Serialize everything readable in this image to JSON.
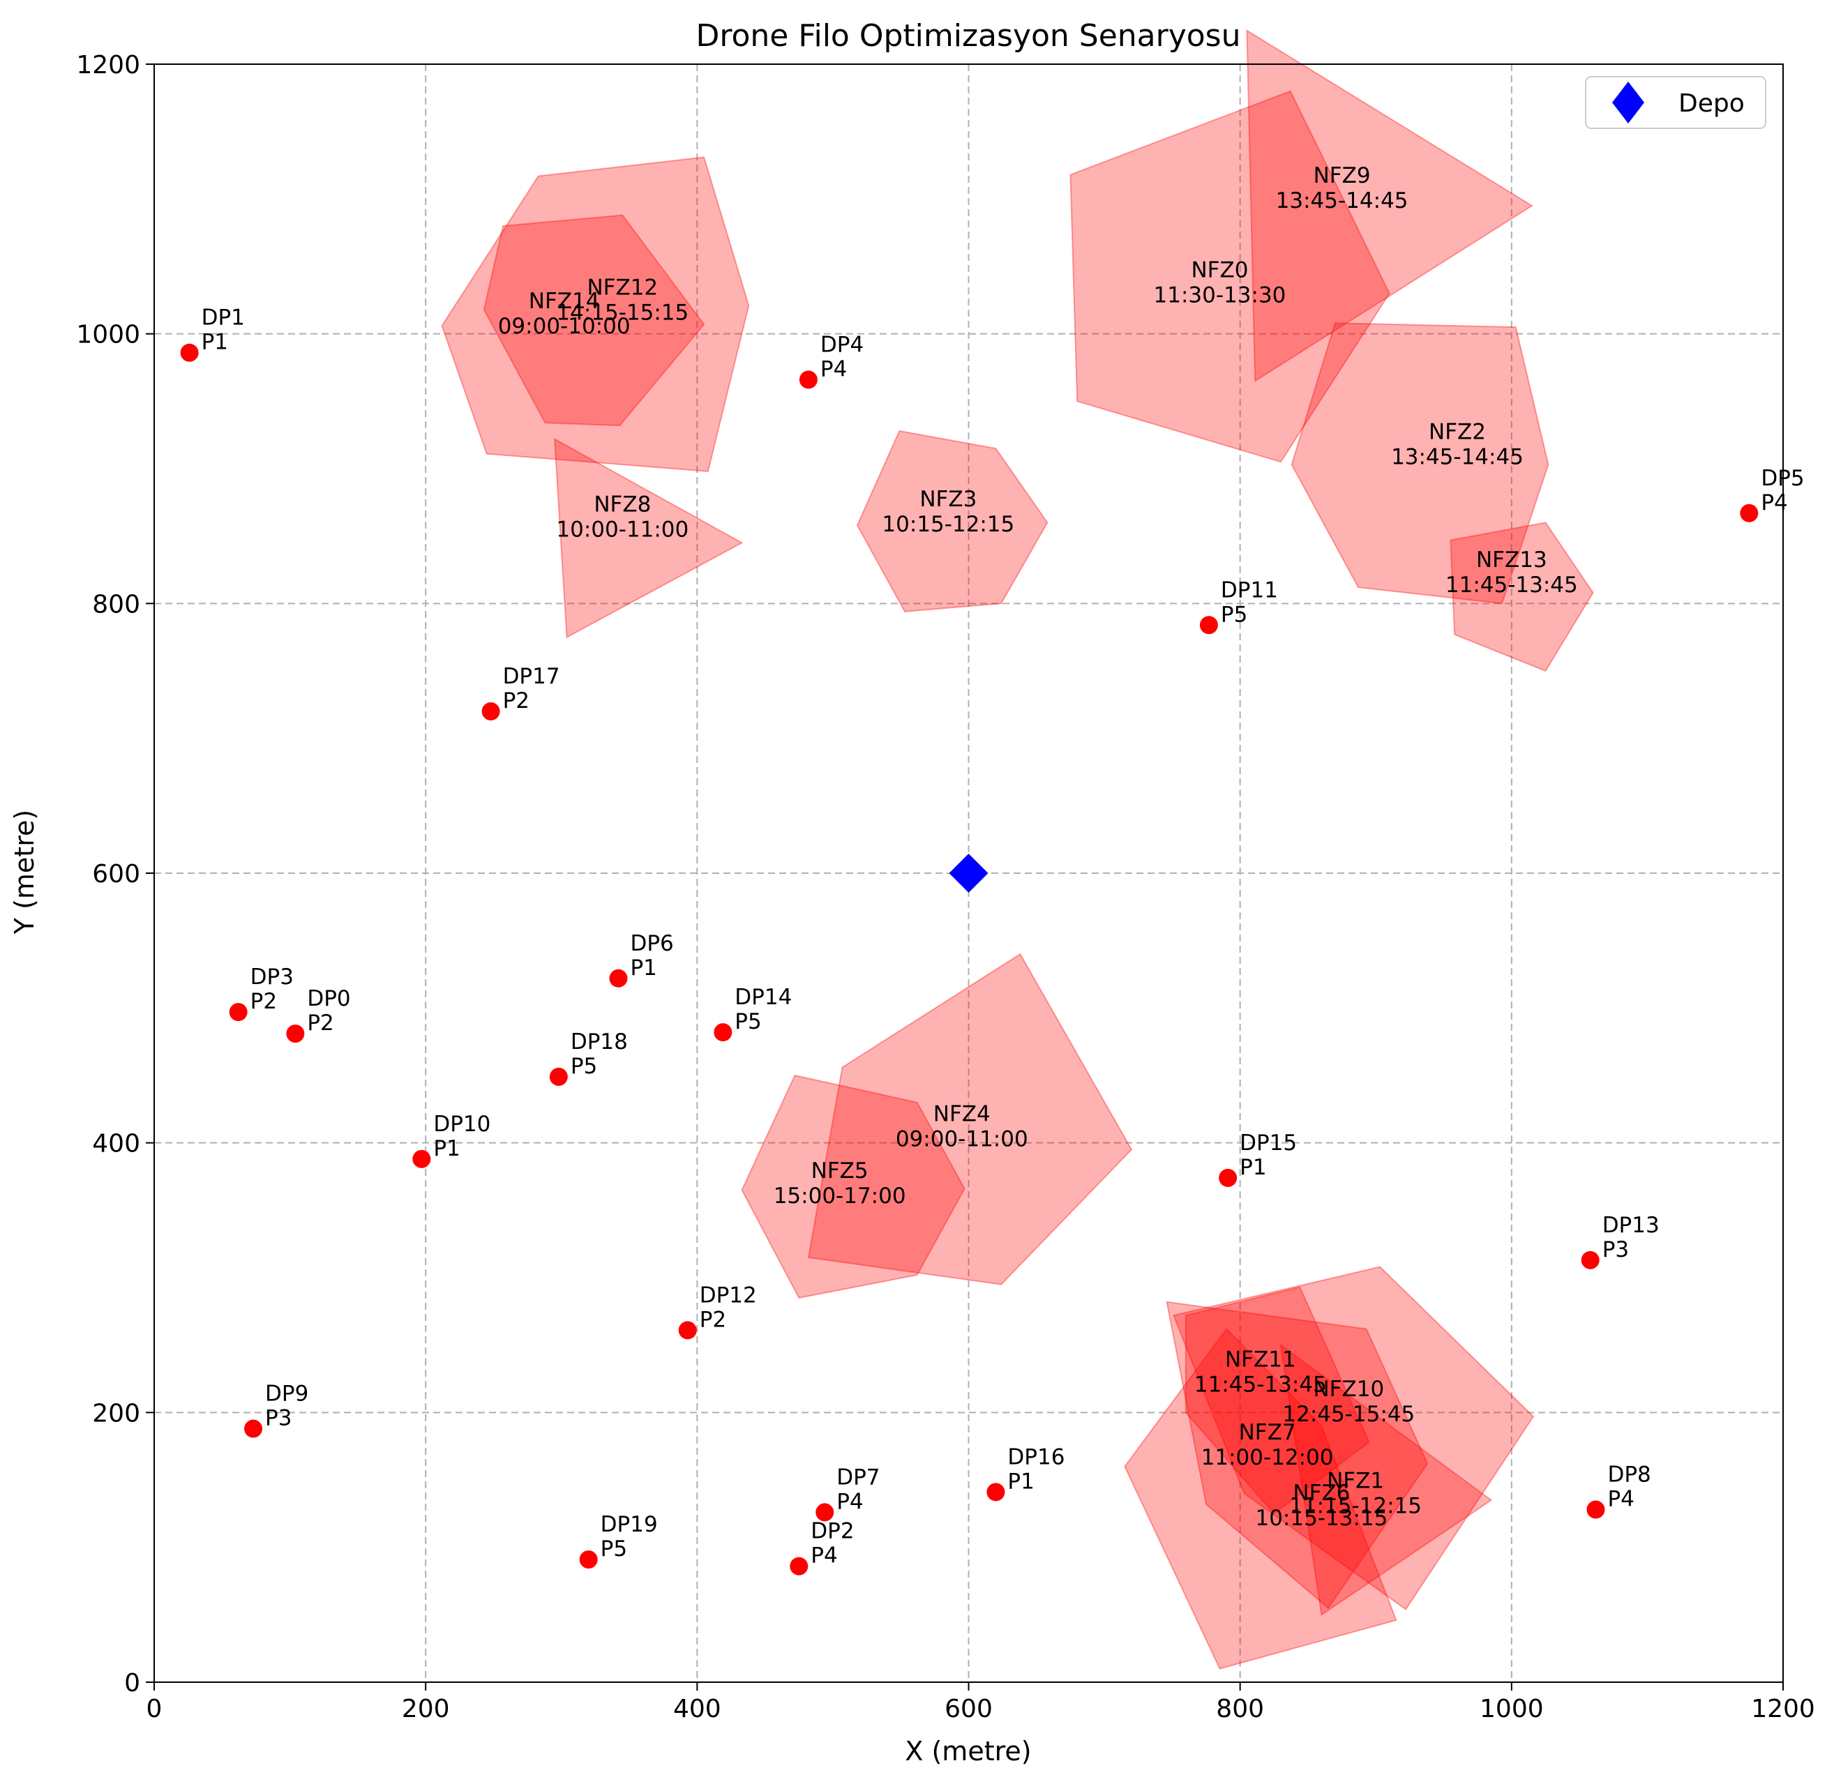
{
  "chart_data": {
    "type": "scatter",
    "title": "Drone Filo Optimizasyon Senaryosu",
    "xlabel": "X (metre)",
    "ylabel": "Y (metre)",
    "xlim": [
      0,
      1200
    ],
    "ylim": [
      0,
      1200
    ],
    "xticks": [
      "0",
      "200",
      "400",
      "600",
      "800",
      "1000",
      "1200"
    ],
    "yticks": [
      "0",
      "200",
      "400",
      "600",
      "800",
      "1000",
      "1200"
    ],
    "grid": true,
    "legend": {
      "position": "top-right",
      "entries": [
        {
          "label": "Depo",
          "marker": "diamond",
          "color": "#0000ff"
        }
      ]
    },
    "colors": {
      "depot": "#0000ff",
      "delivery_point": "#ff0000",
      "nfz_fill": "#ff0000",
      "grid": "#b0b0b0"
    },
    "depot": {
      "name": "Depo",
      "x": 600,
      "y": 600
    },
    "delivery_points": [
      {
        "id": "DP0",
        "priority": "P2",
        "x": 104,
        "y": 481
      },
      {
        "id": "DP1",
        "priority": "P1",
        "x": 26,
        "y": 986
      },
      {
        "id": "DP2",
        "priority": "P4",
        "x": 475,
        "y": 86
      },
      {
        "id": "DP3",
        "priority": "P2",
        "x": 62,
        "y": 497
      },
      {
        "id": "DP4",
        "priority": "P4",
        "x": 482,
        "y": 966
      },
      {
        "id": "DP5",
        "priority": "P4",
        "x": 1175,
        "y": 867
      },
      {
        "id": "DP6",
        "priority": "P1",
        "x": 342,
        "y": 522
      },
      {
        "id": "DP7",
        "priority": "P4",
        "x": 494,
        "y": 126
      },
      {
        "id": "DP8",
        "priority": "P4",
        "x": 1062,
        "y": 128
      },
      {
        "id": "DP9",
        "priority": "P3",
        "x": 73,
        "y": 188
      },
      {
        "id": "DP10",
        "priority": "P1",
        "x": 197,
        "y": 388
      },
      {
        "id": "DP11",
        "priority": "P5",
        "x": 777,
        "y": 784
      },
      {
        "id": "DP12",
        "priority": "P2",
        "x": 393,
        "y": 261
      },
      {
        "id": "DP13",
        "priority": "P3",
        "x": 1058,
        "y": 313
      },
      {
        "id": "DP14",
        "priority": "P5",
        "x": 419,
        "y": 482
      },
      {
        "id": "DP15",
        "priority": "P1",
        "x": 791,
        "y": 374
      },
      {
        "id": "DP16",
        "priority": "P1",
        "x": 620,
        "y": 141
      },
      {
        "id": "DP17",
        "priority": "P2",
        "x": 248,
        "y": 720
      },
      {
        "id": "DP18",
        "priority": "P5",
        "x": 298,
        "y": 449
      },
      {
        "id": "DP19",
        "priority": "P5",
        "x": 320,
        "y": 91
      }
    ],
    "no_fly_zones": [
      {
        "name": "NFZ0",
        "time": "11:30-13:30",
        "label_x": 785,
        "label_y": 1040,
        "polygon": [
          [
            675,
            1118
          ],
          [
            837,
            1180
          ],
          [
            910,
            1030
          ],
          [
            830,
            905
          ],
          [
            680,
            950
          ]
        ]
      },
      {
        "name": "NFZ1",
        "time": "11:15-12:15",
        "label_x": 885,
        "label_y": 142,
        "polygon": [
          [
            830,
            250
          ],
          [
            985,
            135
          ],
          [
            860,
            50
          ]
        ]
      },
      {
        "name": "NFZ2",
        "time": "13:45-14:45",
        "label_x": 960,
        "label_y": 920,
        "polygon": [
          [
            870,
            1008
          ],
          [
            1003,
            1005
          ],
          [
            1027,
            903
          ],
          [
            993,
            800
          ],
          [
            887,
            812
          ],
          [
            838,
            903
          ]
        ]
      },
      {
        "name": "NFZ3",
        "time": "10:15-12:15",
        "label_x": 585,
        "label_y": 870,
        "polygon": [
          [
            549,
            928
          ],
          [
            620,
            915
          ],
          [
            658,
            860
          ],
          [
            624,
            800
          ],
          [
            553,
            794
          ],
          [
            518,
            858
          ]
        ]
      },
      {
        "name": "NFZ4",
        "time": "09:00-11:00",
        "label_x": 595,
        "label_y": 414,
        "polygon": [
          [
            638,
            540
          ],
          [
            720,
            395
          ],
          [
            624,
            295
          ],
          [
            482,
            315
          ],
          [
            507,
            456
          ]
        ]
      },
      {
        "name": "NFZ5",
        "time": "15:00-17:00",
        "label_x": 505,
        "label_y": 372,
        "polygon": [
          [
            472,
            450
          ],
          [
            562,
            430
          ],
          [
            597,
            366
          ],
          [
            562,
            302
          ],
          [
            475,
            285
          ],
          [
            433,
            365
          ]
        ]
      },
      {
        "name": "NFZ6",
        "time": "10:15-13:15",
        "label_x": 860,
        "label_y": 133,
        "polygon": [
          [
            790,
            262
          ],
          [
            860,
            190
          ],
          [
            915,
            46
          ],
          [
            785,
            10
          ],
          [
            715,
            160
          ]
        ]
      },
      {
        "name": "NFZ7",
        "time": "11:00-12:00",
        "label_x": 820,
        "label_y": 178,
        "polygon": [
          [
            746,
            282
          ],
          [
            893,
            262
          ],
          [
            938,
            162
          ],
          [
            865,
            55
          ],
          [
            775,
            132
          ]
        ]
      },
      {
        "name": "NFZ8",
        "time": "10:00-11:00",
        "label_x": 345,
        "label_y": 866,
        "polygon": [
          [
            295,
            922
          ],
          [
            433,
            845
          ],
          [
            304,
            775
          ]
        ]
      },
      {
        "name": "NFZ9",
        "time": "13:45-14:45",
        "label_x": 875,
        "label_y": 1110,
        "polygon": [
          [
            805,
            1225
          ],
          [
            1015,
            1095
          ],
          [
            811,
            965
          ]
        ]
      },
      {
        "name": "NFZ10",
        "time": "12:45-15:45",
        "label_x": 880,
        "label_y": 210,
        "polygon": [
          [
            751,
            272
          ],
          [
            903,
            308
          ],
          [
            1016,
            197
          ],
          [
            922,
            54
          ],
          [
            803,
            140
          ]
        ]
      },
      {
        "name": "NFZ11",
        "time": "11:45-13:45",
        "label_x": 815,
        "label_y": 232,
        "polygon": [
          [
            760,
            272
          ],
          [
            844,
            293
          ],
          [
            895,
            178
          ],
          [
            825,
            125
          ],
          [
            760,
            200
          ]
        ]
      },
      {
        "name": "NFZ12",
        "time": "14:15-15:15",
        "label_x": 345,
        "label_y": 1027,
        "polygon": [
          [
            283,
            1117
          ],
          [
            405,
            1131
          ],
          [
            438,
            1021
          ],
          [
            408,
            898
          ],
          [
            245,
            911
          ],
          [
            212,
            1006
          ]
        ]
      },
      {
        "name": "NFZ13",
        "time": "11:45-13:45",
        "label_x": 1000,
        "label_y": 825,
        "polygon": [
          [
            955,
            847
          ],
          [
            1025,
            860
          ],
          [
            1060,
            808
          ],
          [
            1025,
            750
          ],
          [
            958,
            777
          ]
        ]
      },
      {
        "name": "NFZ14",
        "time": "09:00-10:00",
        "label_x": 302,
        "label_y": 1017,
        "polygon": [
          [
            257,
            1080
          ],
          [
            345,
            1088
          ],
          [
            405,
            1007
          ],
          [
            343,
            932
          ],
          [
            288,
            934
          ],
          [
            243,
            1018
          ]
        ]
      }
    ]
  }
}
